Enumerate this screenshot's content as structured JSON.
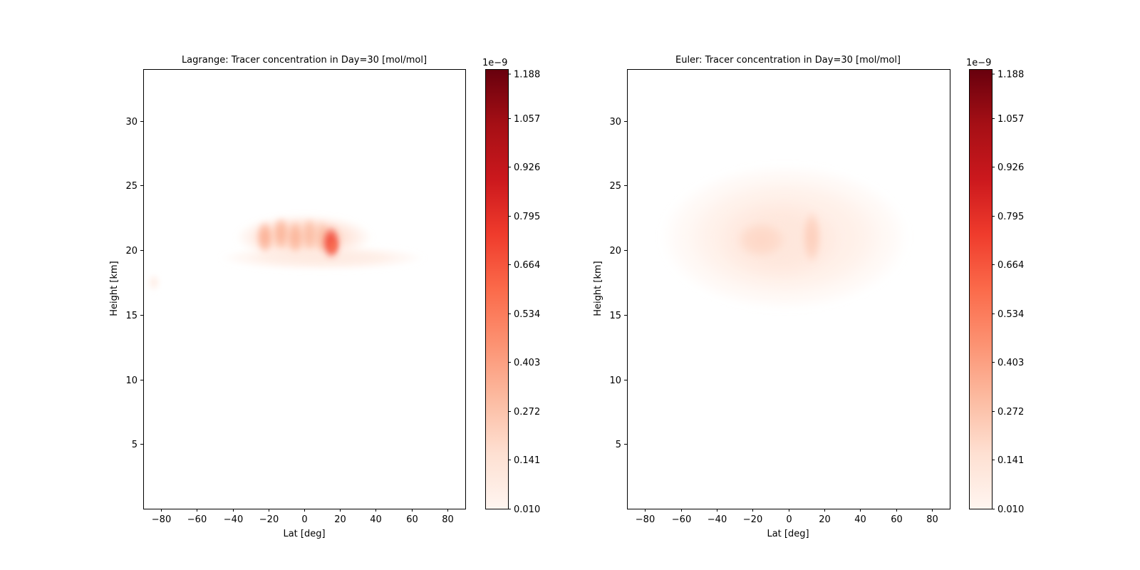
{
  "chart_data": [
    {
      "type": "heatmap",
      "title": "Lagrange: Tracer concentration in Day=30 [mol/mol]",
      "xlabel": "Lat [deg]",
      "ylabel": "Height [km]",
      "xlim": [
        -90,
        90
      ],
      "ylim": [
        0,
        34
      ],
      "xticks": [
        -80,
        -60,
        -40,
        -20,
        0,
        20,
        40,
        60,
        80
      ],
      "yticks": [
        5,
        10,
        15,
        20,
        25,
        30
      ],
      "colormap": "Reds",
      "colorbar": {
        "range": [
          0.01,
          1.188
        ],
        "ticks": [
          0.01,
          0.141,
          0.272,
          0.403,
          0.534,
          0.664,
          0.795,
          0.926,
          1.057,
          1.188
        ],
        "tick_labels": [
          "0.010",
          "0.141",
          "0.272",
          "0.403",
          "0.534",
          "0.664",
          "0.795",
          "0.926",
          "1.057",
          "1.188"
        ],
        "multiplier": "1e−9"
      },
      "blobs": [
        {
          "lat": 0,
          "height": 21.0,
          "sx": 24,
          "sy": 1.1,
          "v": 0.17
        },
        {
          "lat": 10,
          "height": 19.4,
          "sx": 36,
          "sy": 0.6,
          "v": 0.07
        },
        {
          "lat": -22,
          "height": 21.0,
          "sx": 3,
          "sy": 0.8,
          "v": 0.32
        },
        {
          "lat": -13,
          "height": 21.3,
          "sx": 3,
          "sy": 0.8,
          "v": 0.3
        },
        {
          "lat": -5,
          "height": 21.0,
          "sx": 3,
          "sy": 0.8,
          "v": 0.3
        },
        {
          "lat": 3,
          "height": 21.2,
          "sx": 3,
          "sy": 0.8,
          "v": 0.27
        },
        {
          "lat": 10,
          "height": 21.0,
          "sx": 3,
          "sy": 0.8,
          "v": 0.25
        },
        {
          "lat": 15,
          "height": 20.6,
          "sx": 3.2,
          "sy": 0.8,
          "v": 0.7
        },
        {
          "lat": 16,
          "height": 20.3,
          "sx": 1.6,
          "sy": 0.4,
          "v": 0.55
        },
        {
          "lat": -84,
          "height": 17.5,
          "sx": 2,
          "sy": 0.4,
          "v": 0.04
        }
      ]
    },
    {
      "type": "heatmap",
      "title": "Euler: Tracer concentration in Day=30 [mol/mol]",
      "xlabel": "Lat [deg]",
      "ylabel": "Height [km]",
      "xlim": [
        -90,
        90
      ],
      "ylim": [
        0,
        34
      ],
      "xticks": [
        -80,
        -60,
        -40,
        -20,
        0,
        20,
        40,
        60,
        80
      ],
      "yticks": [
        5,
        10,
        15,
        20,
        25,
        30
      ],
      "colormap": "Reds",
      "colorbar": {
        "range": [
          0.01,
          1.188
        ],
        "ticks": [
          0.01,
          0.141,
          0.272,
          0.403,
          0.534,
          0.664,
          0.795,
          0.926,
          1.057,
          1.188
        ],
        "tick_labels": [
          "0.010",
          "0.141",
          "0.272",
          "0.403",
          "0.534",
          "0.664",
          "0.795",
          "0.926",
          "1.057",
          "1.188"
        ],
        "multiplier": "1e−9"
      },
      "blobs": [
        {
          "lat": -2,
          "height": 21.0,
          "sx": 44,
          "sy": 3.6,
          "v": 0.06
        },
        {
          "lat": -5,
          "height": 20.8,
          "sx": 22,
          "sy": 2.0,
          "v": 0.09
        },
        {
          "lat": -15,
          "height": 20.8,
          "sx": 9,
          "sy": 0.9,
          "v": 0.17
        },
        {
          "lat": 13,
          "height": 21.0,
          "sx": 3.5,
          "sy": 1.3,
          "v": 0.2
        }
      ]
    }
  ]
}
